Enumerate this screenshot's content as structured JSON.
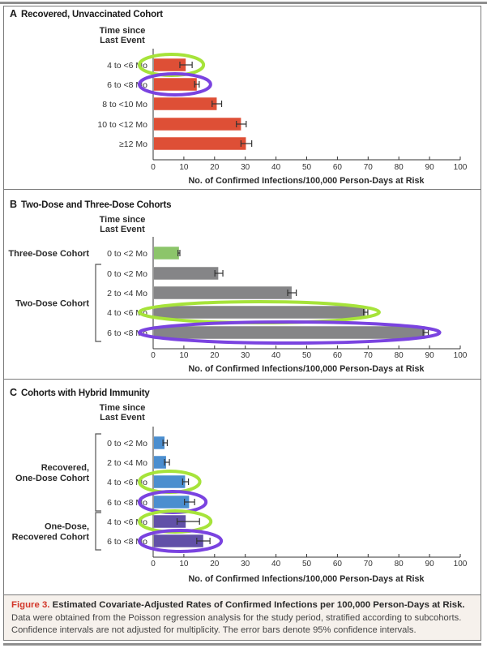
{
  "figure": {
    "label": "Figure 3.",
    "title": "Estimated Covariate-Adjusted Rates of Confirmed Infections per 100,000 Person-Days at Risk.",
    "caption_line1": "Data were obtained from the Poisson regression analysis for the study period, stratified according to subcohorts.",
    "caption_line2": "Confidence intervals are not adjusted for multiplicity. The error bars denote 95% confidence intervals."
  },
  "colors": {
    "red": "#de4f36",
    "gray": "#858587",
    "green": "#8cc56a",
    "blue": "#4b8ecf",
    "purple": "#6150a8",
    "highlight_green": "#a6e33a",
    "highlight_purple": "#7a43e0",
    "caption_accent": "#d2372a"
  },
  "chart_data": [
    {
      "type": "bar",
      "orientation": "horizontal",
      "panel": "A",
      "title": "Recovered, Unvaccinated Cohort",
      "category_header": [
        "Time since",
        "Last Event"
      ],
      "xlabel": "No. of Confirmed Infections/100,000 Person-Days at Risk",
      "xlim": [
        0,
        100
      ],
      "xticks": [
        0,
        10,
        20,
        30,
        40,
        50,
        60,
        70,
        80,
        90,
        100
      ],
      "grid": false,
      "groups": [],
      "bars": [
        {
          "label": "4 to <6 Mo",
          "value": 10.6,
          "ci": [
            8.7,
            12.7
          ],
          "color": "red",
          "highlight": "green"
        },
        {
          "label": "6 to <8 Mo",
          "value": 14.2,
          "ci": [
            13.5,
            15.0
          ],
          "color": "red",
          "highlight": "purple"
        },
        {
          "label": "8 to <10 Mo",
          "value": 20.7,
          "ci": [
            19.2,
            22.3
          ],
          "color": "red",
          "highlight": null
        },
        {
          "label": "10 to <12 Mo",
          "value": 28.6,
          "ci": [
            27.1,
            30.3
          ],
          "color": "red",
          "highlight": null
        },
        {
          "label": "≥12 Mo",
          "value": 30.2,
          "ci": [
            28.6,
            32.1
          ],
          "color": "red",
          "highlight": null
        }
      ]
    },
    {
      "type": "bar",
      "orientation": "horizontal",
      "panel": "B",
      "title": "Two-Dose and Three-Dose Cohorts",
      "category_header": [
        "Time since",
        "Last Event"
      ],
      "xlabel": "No. of Confirmed Infections/100,000 Person-Days at Risk",
      "xlim": [
        0,
        100
      ],
      "xticks": [
        0,
        10,
        20,
        30,
        40,
        50,
        60,
        70,
        80,
        90,
        100
      ],
      "grid": false,
      "groups": [
        {
          "label": [
            "Three-Dose Cohort"
          ],
          "rows": [
            0,
            0
          ],
          "bracket": false
        },
        {
          "label": [
            "Two-Dose Cohort"
          ],
          "rows": [
            1,
            4
          ],
          "bracket": true
        }
      ],
      "bars": [
        {
          "label": "0 to <2 Mo",
          "value": 8.4,
          "ci": [
            8.1,
            8.7
          ],
          "color": "green",
          "highlight": null
        },
        {
          "label": "0 to <2 Mo",
          "value": 21.2,
          "ci": [
            20.1,
            22.7
          ],
          "color": "gray",
          "highlight": null
        },
        {
          "label": "2 to <4 Mo",
          "value": 45.1,
          "ci": [
            43.8,
            46.6
          ],
          "color": "gray",
          "highlight": null
        },
        {
          "label": "4 to <6 Mo",
          "value": 69.1,
          "ci": [
            68.5,
            69.9
          ],
          "color": "gray",
          "highlight": "green"
        },
        {
          "label": "6 to <8 Mo",
          "value": 88.5,
          "ci": [
            87.9,
            89.6
          ],
          "color": "gray",
          "highlight": "purple"
        }
      ]
    },
    {
      "type": "bar",
      "orientation": "horizontal",
      "panel": "C",
      "title": "Cohorts with Hybrid Immunity",
      "category_header": [
        "Time since",
        "Last Event"
      ],
      "xlabel": "No. of Confirmed Infections/100,000 Person-Days at Risk",
      "xlim": [
        0,
        100
      ],
      "xticks": [
        0,
        10,
        20,
        30,
        40,
        50,
        60,
        70,
        80,
        90,
        100
      ],
      "grid": false,
      "groups": [
        {
          "label": [
            "Recovered,",
            "One-Dose Cohort"
          ],
          "rows": [
            0,
            3
          ],
          "bracket": true
        },
        {
          "label": [
            "One-Dose,",
            "Recovered Cohort"
          ],
          "rows": [
            4,
            5
          ],
          "bracket": true
        }
      ],
      "bars": [
        {
          "label": "0 to <2 Mo",
          "value": 3.7,
          "ci": [
            3.2,
            4.6
          ],
          "color": "blue",
          "highlight": null
        },
        {
          "label": "2 to <4 Mo",
          "value": 4.2,
          "ci": [
            3.7,
            5.3
          ],
          "color": "blue",
          "highlight": null
        },
        {
          "label": "4 to <6 Mo",
          "value": 10.4,
          "ci": [
            9.6,
            11.5
          ],
          "color": "blue",
          "highlight": "green"
        },
        {
          "label": "6 to <8 Mo",
          "value": 11.7,
          "ci": [
            10.2,
            13.5
          ],
          "color": "blue",
          "highlight": "purple"
        },
        {
          "label": "4 to <6 Mo",
          "value": 10.6,
          "ci": [
            7.8,
            15.1
          ],
          "color": "purple",
          "highlight": "green"
        },
        {
          "label": "6 to <8 Mo",
          "value": 16.3,
          "ci": [
            14.2,
            18.5
          ],
          "color": "purple",
          "highlight": "purple"
        }
      ]
    }
  ]
}
